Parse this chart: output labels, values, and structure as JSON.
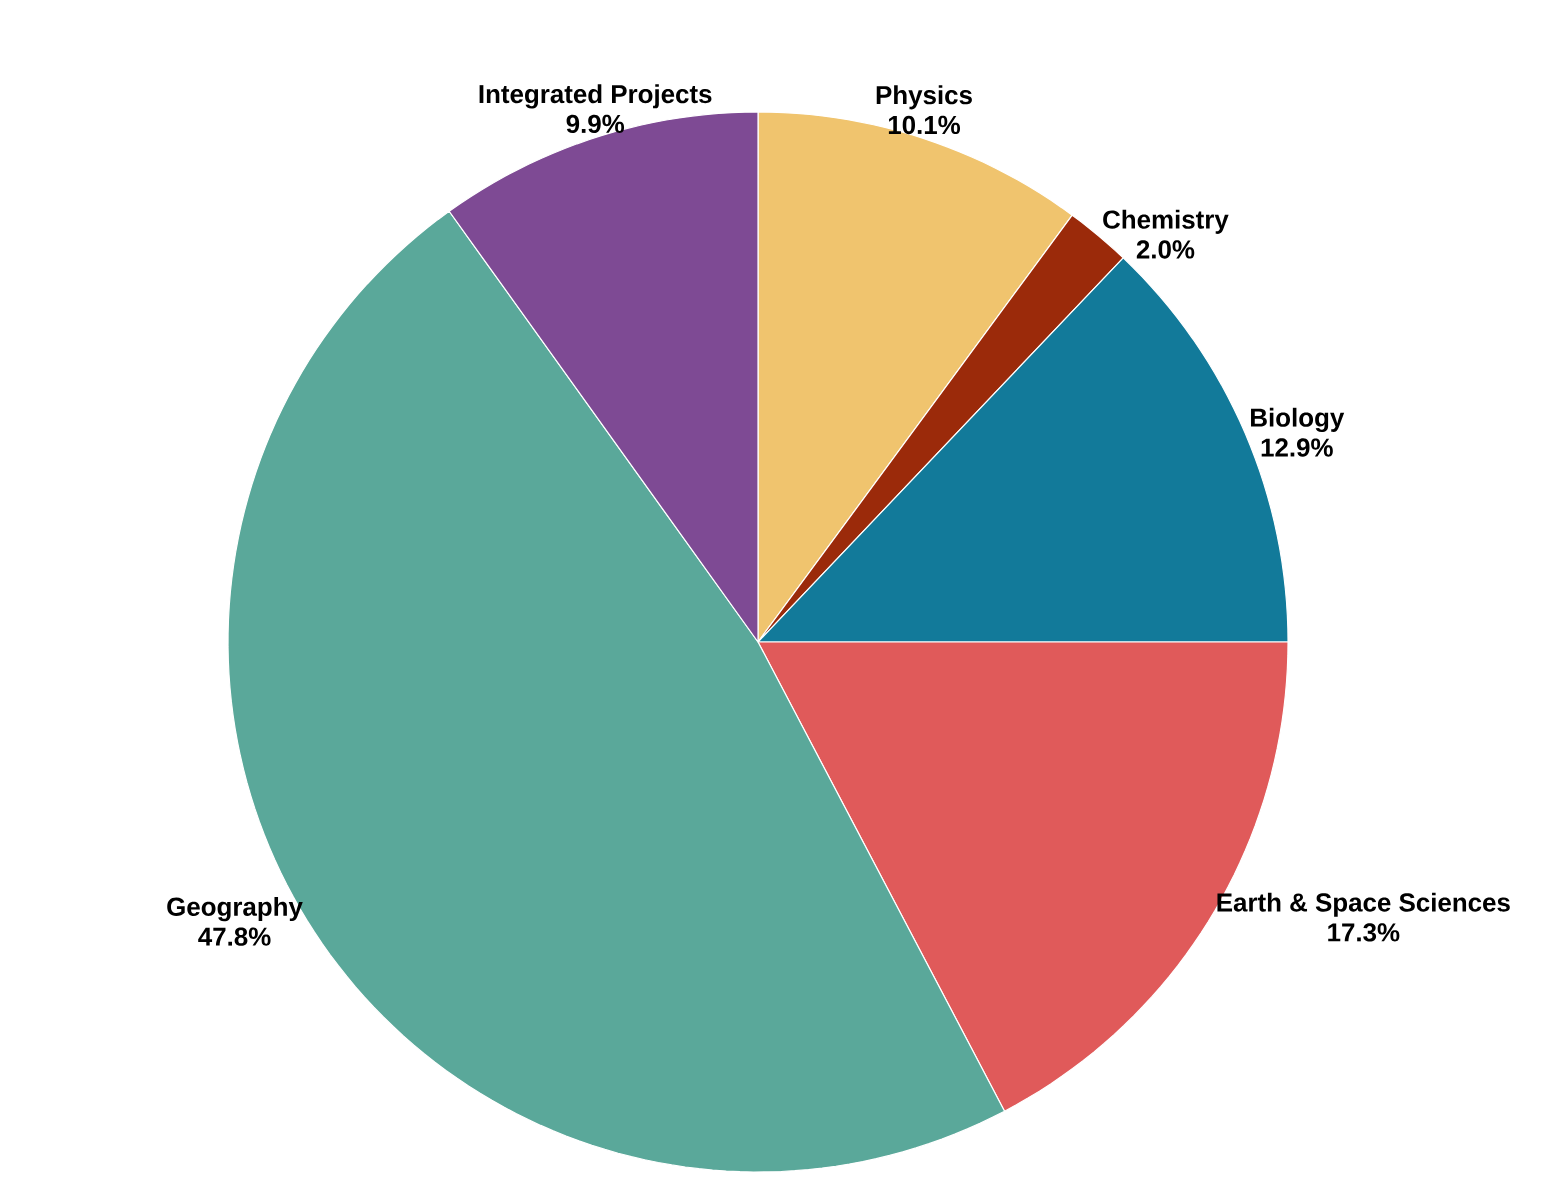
{
  "chart_data": {
    "type": "pie",
    "categories": [
      "Physics",
      "Chemistry",
      "Biology",
      "Earth & Space Sciences",
      "Geography",
      "Integrated Projects"
    ],
    "values": [
      10.1,
      2.0,
      12.9,
      17.3,
      47.8,
      9.9
    ],
    "value_labels": [
      "10.1%",
      "2.0%",
      "12.9%",
      "17.3%",
      "47.8%",
      "9.9%"
    ],
    "colors": [
      "#f0c46e",
      "#9b2a0a",
      "#127a9a",
      "#e05a5a",
      "#5aa89a",
      "#7e4a94"
    ]
  }
}
